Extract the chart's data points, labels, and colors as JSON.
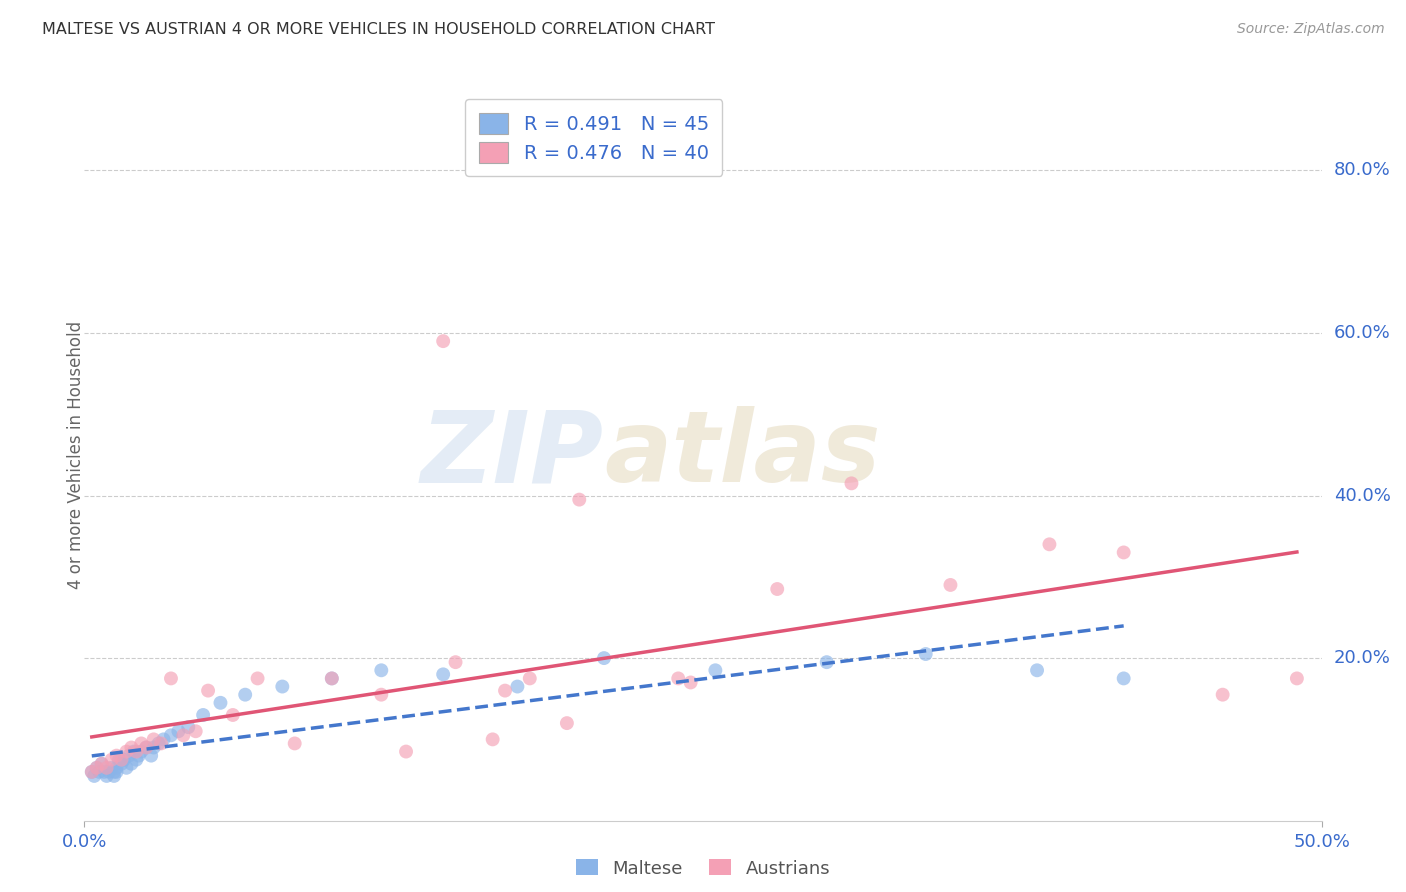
{
  "title": "MALTESE VS AUSTRIAN 4 OR MORE VEHICLES IN HOUSEHOLD CORRELATION CHART",
  "source": "Source: ZipAtlas.com",
  "ylabel": "4 or more Vehicles in Household",
  "xlim": [
    0.0,
    0.5
  ],
  "ylim": [
    0.0,
    0.9
  ],
  "xtick_labels": [
    "0.0%",
    "50.0%"
  ],
  "xtick_vals": [
    0.0,
    0.5
  ],
  "ytick_labels": [
    "20.0%",
    "40.0%",
    "60.0%",
    "80.0%"
  ],
  "ytick_vals": [
    0.2,
    0.4,
    0.6,
    0.8
  ],
  "legend_R_maltese": "R = 0.491",
  "legend_N_maltese": "N = 45",
  "legend_R_austrians": "R = 0.476",
  "legend_N_austrians": "N = 40",
  "maltese_color": "#8ab4e8",
  "austrian_color": "#f4a0b5",
  "maltese_line_color": "#4477cc",
  "austrian_line_color": "#e05575",
  "watermark_zip": "ZIP",
  "watermark_atlas": "atlas",
  "maltese_x": [
    0.003,
    0.004,
    0.005,
    0.006,
    0.007,
    0.008,
    0.009,
    0.01,
    0.011,
    0.012,
    0.012,
    0.013,
    0.013,
    0.014,
    0.015,
    0.016,
    0.017,
    0.018,
    0.019,
    0.02,
    0.021,
    0.022,
    0.023,
    0.025,
    0.027,
    0.028,
    0.03,
    0.032,
    0.035,
    0.038,
    0.042,
    0.048,
    0.055,
    0.065,
    0.08,
    0.1,
    0.12,
    0.145,
    0.175,
    0.21,
    0.255,
    0.3,
    0.34,
    0.385,
    0.42
  ],
  "maltese_y": [
    0.06,
    0.055,
    0.065,
    0.06,
    0.07,
    0.06,
    0.055,
    0.06,
    0.065,
    0.055,
    0.06,
    0.065,
    0.06,
    0.075,
    0.07,
    0.075,
    0.065,
    0.08,
    0.07,
    0.085,
    0.075,
    0.08,
    0.085,
    0.09,
    0.08,
    0.09,
    0.095,
    0.1,
    0.105,
    0.11,
    0.115,
    0.13,
    0.145,
    0.155,
    0.165,
    0.175,
    0.185,
    0.18,
    0.165,
    0.2,
    0.185,
    0.195,
    0.205,
    0.185,
    0.175
  ],
  "austrian_x": [
    0.003,
    0.005,
    0.007,
    0.009,
    0.011,
    0.013,
    0.015,
    0.017,
    0.019,
    0.021,
    0.023,
    0.025,
    0.028,
    0.031,
    0.035,
    0.04,
    0.045,
    0.05,
    0.06,
    0.07,
    0.085,
    0.1,
    0.12,
    0.145,
    0.17,
    0.2,
    0.24,
    0.28,
    0.15,
    0.18,
    0.31,
    0.35,
    0.39,
    0.42,
    0.46,
    0.49,
    0.245,
    0.195,
    0.165,
    0.13
  ],
  "austrian_y": [
    0.06,
    0.065,
    0.07,
    0.065,
    0.075,
    0.08,
    0.075,
    0.085,
    0.09,
    0.085,
    0.095,
    0.09,
    0.1,
    0.095,
    0.175,
    0.105,
    0.11,
    0.16,
    0.13,
    0.175,
    0.095,
    0.175,
    0.155,
    0.59,
    0.16,
    0.395,
    0.175,
    0.285,
    0.195,
    0.175,
    0.415,
    0.29,
    0.34,
    0.33,
    0.155,
    0.175,
    0.17,
    0.12,
    0.1,
    0.085
  ]
}
